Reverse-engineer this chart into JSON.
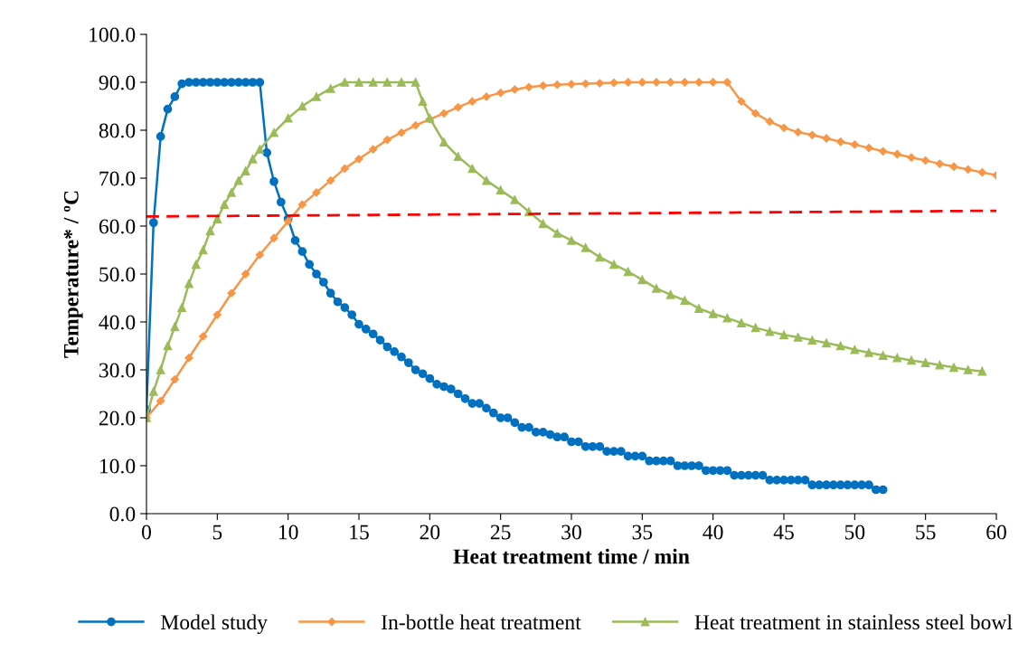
{
  "chart_data": {
    "type": "line",
    "xlabel": "Heat treatment time / min",
    "ylabel": "Temperature* / ºC",
    "xlim": [
      0,
      60
    ],
    "xticks": [
      0,
      5,
      10,
      15,
      20,
      25,
      30,
      35,
      40,
      45,
      50,
      55,
      60
    ],
    "ylim": [
      0,
      100
    ],
    "yticks": [
      {
        "value": 0,
        "label": "0.0"
      },
      {
        "value": 10,
        "label": "10.0"
      },
      {
        "value": 20,
        "label": "20.0"
      },
      {
        "value": 30,
        "label": "30.0"
      },
      {
        "value": 40,
        "label": "40.0"
      },
      {
        "value": 50,
        "label": "50.0"
      },
      {
        "value": 60,
        "label": "60.0"
      },
      {
        "value": 70,
        "label": "70.0"
      },
      {
        "value": 80,
        "label": "80.0"
      },
      {
        "value": 90,
        "label": "90.0"
      },
      {
        "value": 100,
        "label": "100.0"
      }
    ],
    "grid": false,
    "legend": "bottom",
    "series": [
      {
        "name": "Model study",
        "color": "#0070c0",
        "marker": "circle",
        "line_style": "solid",
        "x": [
          0,
          0.5,
          1,
          1.5,
          2,
          2.5,
          3,
          3.5,
          4,
          4.5,
          5,
          5.5,
          6,
          6.5,
          7,
          7.5,
          8,
          8.5,
          9,
          9.5,
          10,
          10.5,
          11,
          11.5,
          12,
          12.5,
          13,
          13.5,
          14,
          14.5,
          15,
          15.5,
          16,
          16.5,
          17,
          17.5,
          18,
          18.5,
          19,
          19.5,
          20,
          20.5,
          21,
          21.5,
          22,
          22.5,
          23,
          23.5,
          24,
          24.5,
          25,
          25.5,
          26,
          26.5,
          27,
          27.5,
          28,
          28.5,
          29,
          29.5,
          30,
          30.5,
          31,
          31.5,
          32,
          32.5,
          33,
          33.5,
          34,
          34.5,
          35,
          35.5,
          36,
          36.5,
          37,
          37.5,
          38,
          38.5,
          39,
          39.5,
          40,
          40.5,
          41,
          41.5,
          42,
          42.5,
          43,
          43.5,
          44,
          44.5,
          45,
          45.5,
          46,
          46.5,
          47,
          47.5,
          48,
          48.5,
          49,
          49.5,
          50,
          50.5,
          51,
          51.5,
          52
        ],
        "values": [
          21.7,
          60.7,
          78.7,
          84.4,
          87,
          89.7,
          90,
          90,
          90,
          90,
          90,
          90,
          90,
          90,
          90,
          90,
          90,
          75.3,
          69.3,
          65,
          61.5,
          57,
          54.7,
          52,
          50,
          48.3,
          46,
          44.2,
          43,
          41.5,
          39.5,
          38.5,
          37.5,
          36.2,
          34.8,
          33.8,
          32.7,
          31.5,
          30,
          29.2,
          28.2,
          27,
          26.5,
          26,
          25,
          24,
          23,
          23,
          22,
          21,
          20,
          20,
          19,
          18,
          18,
          17,
          17,
          16.5,
          16,
          16,
          15,
          15,
          14,
          14,
          14,
          13,
          13,
          13,
          12,
          12,
          12,
          11,
          11,
          11,
          11,
          10,
          10,
          10,
          10,
          9,
          9,
          9,
          9,
          8,
          8,
          8,
          8,
          8,
          7,
          7,
          7,
          7,
          7,
          7,
          6,
          6,
          6,
          6,
          6,
          6,
          6,
          6,
          6,
          5,
          5
        ]
      },
      {
        "name": "In-bottle heat treatment",
        "color": "#f79646",
        "marker": "diamond",
        "line_style": "solid",
        "x": [
          0,
          1,
          2,
          3,
          4,
          5,
          6,
          7,
          8,
          9,
          10,
          11,
          12,
          13,
          14,
          15,
          16,
          17,
          18,
          19,
          20,
          21,
          22,
          23,
          24,
          25,
          26,
          27,
          28,
          29,
          30,
          31,
          32,
          33,
          34,
          35,
          36,
          37,
          38,
          39,
          40,
          41,
          42,
          43,
          44,
          45,
          46,
          47,
          48,
          49,
          50,
          51,
          52,
          53,
          54,
          55,
          56,
          57,
          58,
          59,
          60
        ],
        "values": [
          20,
          23.5,
          28,
          32.5,
          37,
          41.5,
          46,
          50,
          54,
          57.5,
          61,
          64.5,
          67,
          69.5,
          72,
          74,
          76,
          78,
          79.5,
          81,
          82.3,
          83.5,
          84.8,
          86,
          87,
          87.8,
          88.5,
          89,
          89.3,
          89.5,
          89.6,
          89.7,
          89.8,
          89.9,
          90,
          90,
          90,
          90,
          90,
          90,
          90,
          90,
          86,
          83.5,
          81.8,
          80.5,
          79.6,
          79,
          78.3,
          77.6,
          77,
          76.3,
          75.6,
          75,
          74.3,
          73.7,
          73,
          72.4,
          71.8,
          71.2,
          70.6
        ]
      },
      {
        "name": "Heat treatment in stainless steel bowl",
        "color": "#9bbb59",
        "marker": "triangle",
        "line_style": "solid",
        "x": [
          0,
          0.5,
          1,
          1.5,
          2,
          2.5,
          3,
          3.5,
          4,
          4.5,
          5,
          5.5,
          6,
          6.5,
          7,
          7.5,
          8,
          9,
          10,
          11,
          12,
          13,
          14,
          15,
          16,
          17,
          18,
          19,
          19.5,
          20,
          21,
          22,
          23,
          24,
          25,
          26,
          27,
          28,
          29,
          30,
          31,
          32,
          33,
          34,
          35,
          36,
          37,
          38,
          39,
          40,
          41,
          42,
          43,
          44,
          45,
          46,
          47,
          48,
          49,
          50,
          51,
          52,
          53,
          54,
          55,
          56,
          57,
          58,
          59
        ],
        "values": [
          20,
          25.5,
          30,
          35,
          39,
          43,
          48,
          52,
          55,
          59,
          61.5,
          64.5,
          67,
          69.5,
          71.5,
          74,
          76,
          79.5,
          82.5,
          85,
          87,
          88.7,
          90,
          90,
          90,
          90,
          90,
          90,
          86,
          82.5,
          77.5,
          74.5,
          72,
          69.5,
          67.5,
          65.5,
          63,
          60.5,
          58.5,
          57,
          55.5,
          53.5,
          52,
          50.5,
          48.8,
          47,
          45.7,
          44.5,
          42.8,
          41.7,
          40.8,
          39.8,
          38.8,
          38,
          37.3,
          36.8,
          36.2,
          35.6,
          35,
          34.2,
          33.6,
          33,
          32.5,
          32,
          31.5,
          31,
          30.5,
          30,
          29.7
        ]
      },
      {
        "color": "#ff0000",
        "marker": "none",
        "line_style": "dashed",
        "x": [
          0,
          60
        ],
        "values": [
          62,
          63.2
        ]
      }
    ]
  }
}
